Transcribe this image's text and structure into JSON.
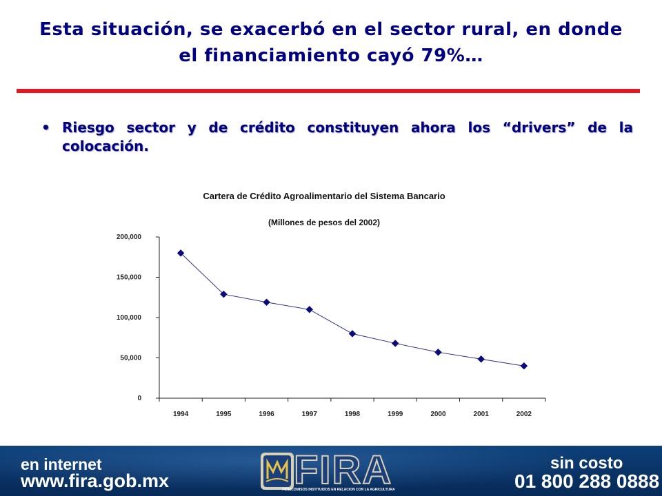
{
  "slide": {
    "title_line1": "Esta situación, se exacerbó en el sector rural, en donde",
    "title_line2": "el financiamiento cayó 79%…",
    "bullet_symbol": "•",
    "bullet_text": "Riesgo sector y de crédito constituyen ahora los “drivers” de la colocación."
  },
  "chart_data": {
    "type": "line",
    "title": "Cartera de Crédito Agroalimentario del Sistema Bancario",
    "subtitle": "(Millones de pesos del 2002)",
    "xlabel": "",
    "ylabel": "",
    "categories": [
      "1994",
      "1995",
      "1996",
      "1997",
      "1998",
      "1999",
      "2000",
      "2001",
      "2002"
    ],
    "series": [
      {
        "values": [
          180000,
          129000,
          119000,
          110000,
          80000,
          68000,
          57000,
          48500,
          40000
        ]
      }
    ],
    "ylim": [
      0,
      200000
    ],
    "yticks": [
      0,
      50000,
      100000,
      150000,
      200000
    ],
    "ytick_labels": [
      "0",
      "50,000",
      "100,000",
      "150,000",
      "200,000"
    ],
    "grid": false,
    "legend": "none",
    "line_color": "#2b2d86",
    "marker": "diamond"
  },
  "footer": {
    "left_line1": "en internet",
    "left_line2": "www.fira.gob.mx",
    "logo_text": "FIRA",
    "logo_subtitle": "FIDEICOMISOS INSTITUIDOS EN RELACION CON LA AGRICULTURA",
    "right_line1": "sin costo",
    "right_line2": "01 800 288 0888"
  },
  "colors": {
    "title": "#000080",
    "rule": "#e8141e",
    "footer_bg": "#0a3468"
  }
}
